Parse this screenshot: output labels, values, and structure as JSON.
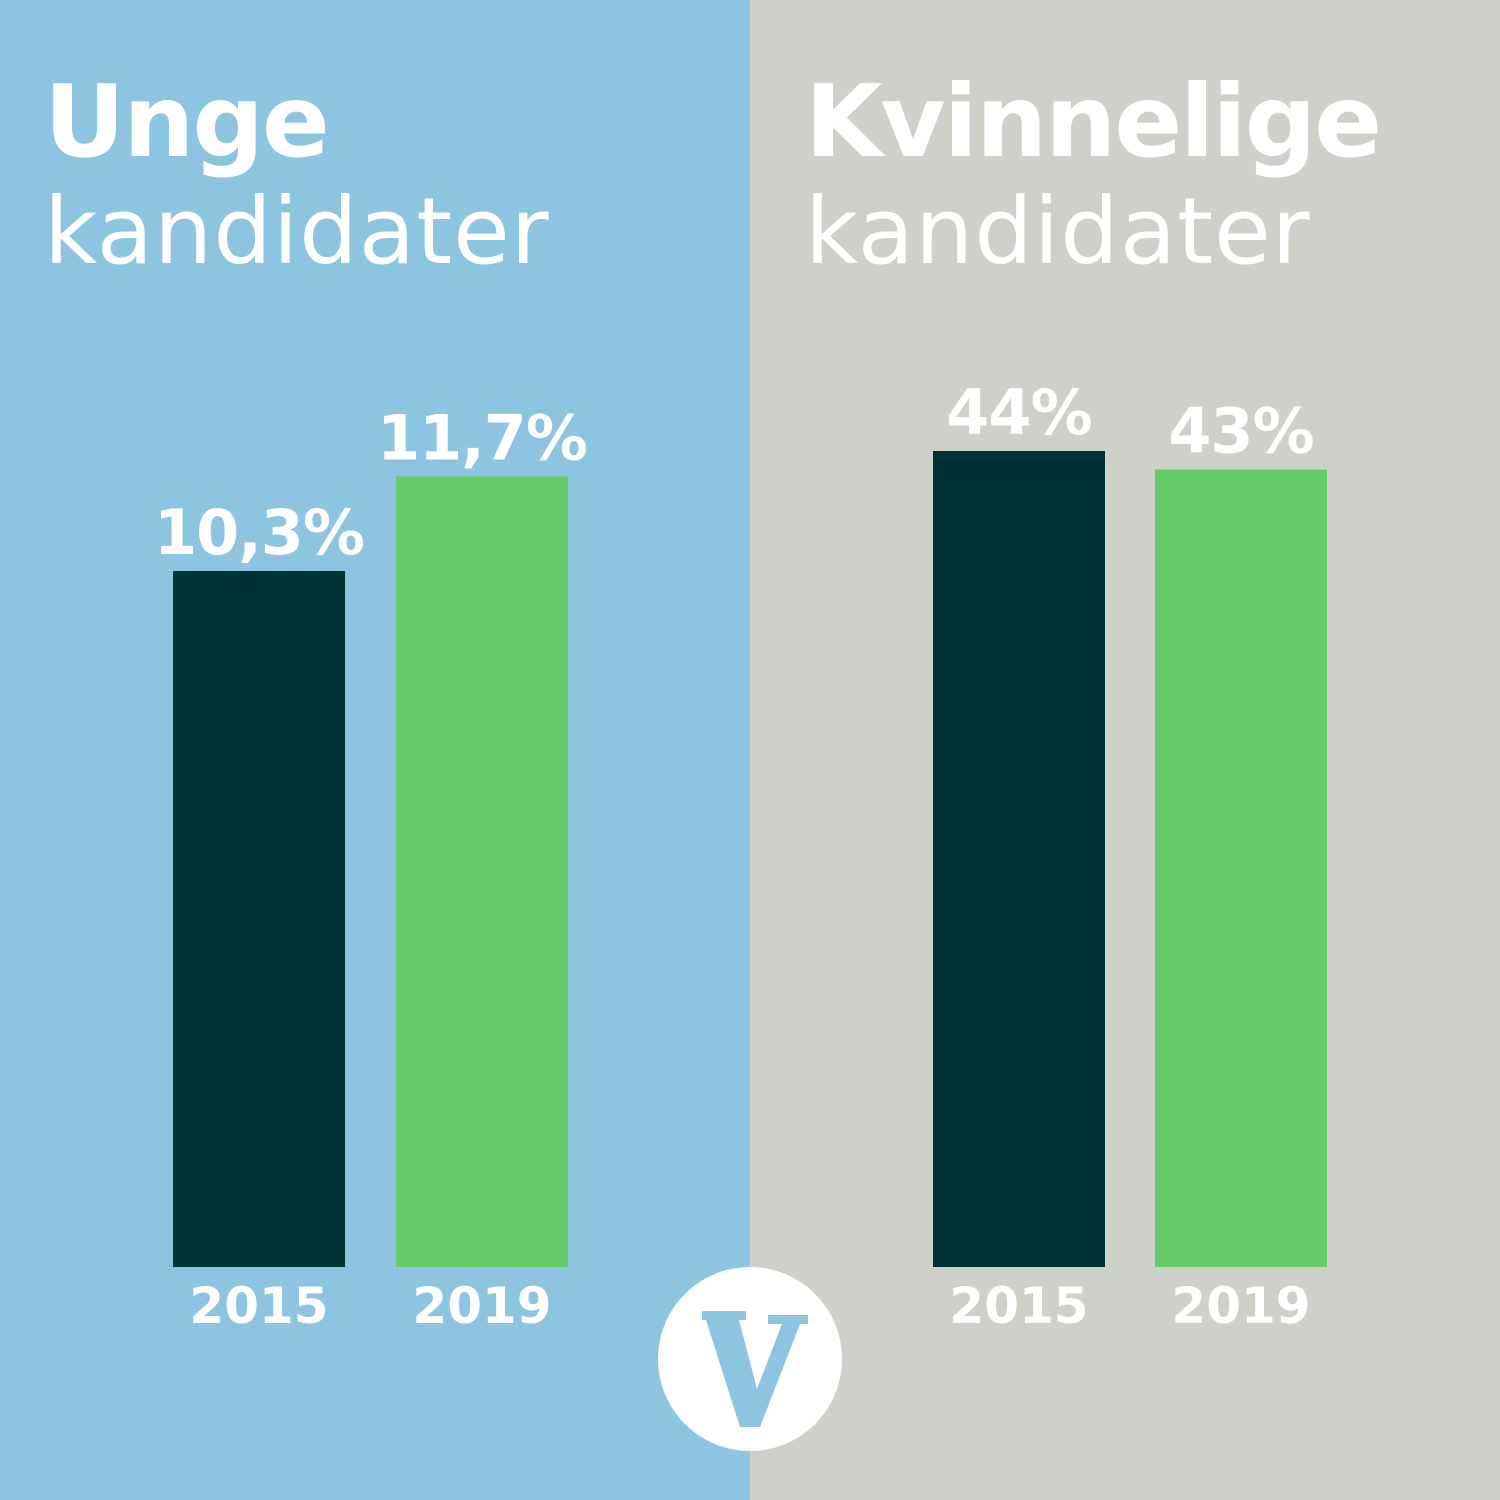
{
  "panel_colors": [
    "#8dc4df",
    "#ced1ca"
  ],
  "logo": {
    "letter": "V",
    "icon": "venstre-v-logo-icon"
  },
  "chart_data": [
    {
      "type": "bar",
      "title_bold": "Unge",
      "title_light": "kandidater",
      "categories": [
        "2015",
        "2019"
      ],
      "values": [
        10.3,
        11.7
      ],
      "value_labels": [
        "10,3%",
        "11,7%"
      ],
      "colors": [
        "#003336",
        "#66cc6a"
      ],
      "grid": false
    },
    {
      "type": "bar",
      "title_bold": "Kvinnelige",
      "title_light": "kandidater",
      "categories": [
        "2015",
        "2019"
      ],
      "values": [
        44,
        43
      ],
      "value_labels": [
        "44%",
        "43%"
      ],
      "colors": [
        "#003336",
        "#66cc6a"
      ],
      "grid": false
    }
  ]
}
